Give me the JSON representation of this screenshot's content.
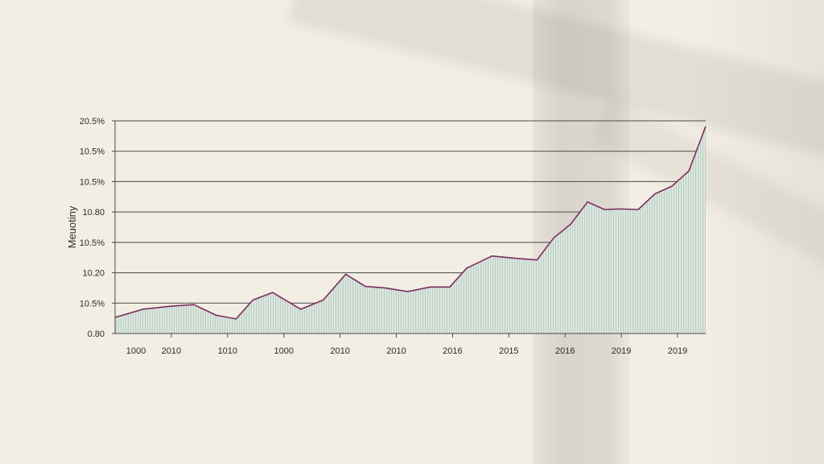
{
  "chart_data": {
    "type": "area",
    "ylabel": "Meuotiny",
    "y_tick_labels": [
      "20.5%",
      "10.5%",
      "10.5%",
      "10.80",
      "10.5%",
      "10.20",
      "10.5%",
      "0.80"
    ],
    "x_tick_labels": [
      "1000",
      "2010",
      "1010",
      "1000",
      "2010",
      "2010",
      "2016",
      "2015",
      "2016",
      "2019",
      "2019"
    ],
    "ylim": [
      0,
      7
    ],
    "xlim": [
      0,
      10.5
    ],
    "grid": "horizontal",
    "colors": {
      "line": "#7a2e5e",
      "fill": "#dbe6df",
      "hatch": "#b5c9bc",
      "grid": "#4a4a4a"
    },
    "series": [
      {
        "x": [
          0,
          0.5,
          1,
          1.4,
          1.8,
          2.15,
          2.45,
          2.8,
          3.3,
          3.7,
          4.1,
          4.45,
          4.8,
          5.2,
          5.6,
          5.95,
          6.25,
          6.7,
          7.15,
          7.5,
          7.8,
          8.1,
          8.4,
          8.7,
          9.0,
          9.3,
          9.6,
          9.9,
          10.2,
          10.5
        ],
        "y": [
          0.53,
          0.8,
          0.9,
          0.95,
          0.6,
          0.48,
          1.1,
          1.35,
          0.8,
          1.1,
          1.95,
          1.55,
          1.5,
          1.38,
          1.53,
          1.53,
          2.15,
          2.55,
          2.47,
          2.42,
          3.15,
          3.6,
          4.33,
          4.08,
          4.1,
          4.08,
          4.6,
          4.85,
          5.35,
          6.82
        ]
      }
    ]
  }
}
